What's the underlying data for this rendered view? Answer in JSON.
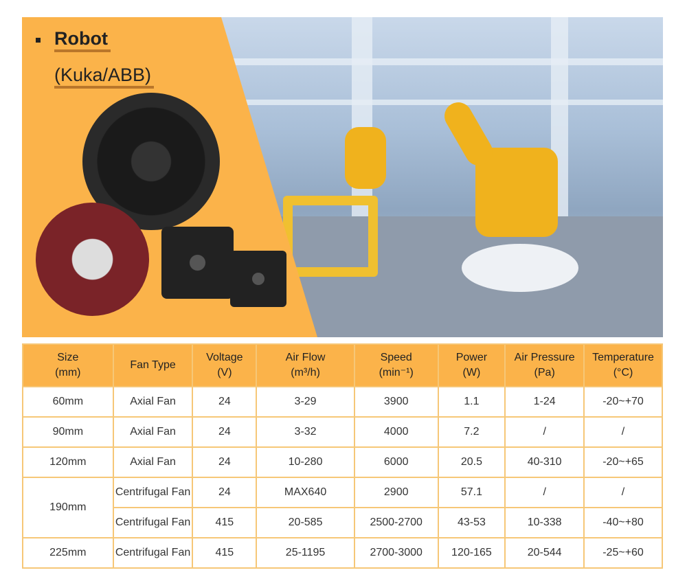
{
  "hero": {
    "title_line1": "Robot",
    "title_line2": "(Kuka/ABB)"
  },
  "table": {
    "headers": [
      [
        "Size",
        "(mm)"
      ],
      [
        "Fan Type",
        ""
      ],
      [
        "Voltage",
        "(V)"
      ],
      [
        "Air Flow",
        "(m³/h)"
      ],
      [
        "Speed",
        "(min⁻¹)"
      ],
      [
        "Power",
        "(W)"
      ],
      [
        "Air Pressure",
        "(Pa)"
      ],
      [
        "Temperature",
        "(°C)"
      ]
    ],
    "rows": [
      [
        "60mm",
        "Axial Fan",
        "24",
        "3-29",
        "3900",
        "1.1",
        "1-24",
        "-20~+70"
      ],
      [
        "90mm",
        "Axial Fan",
        "24",
        "3-32",
        "4000",
        "7.2",
        "/",
        "/"
      ],
      [
        "120mm",
        "Axial Fan",
        "24",
        "10-280",
        "6000",
        "20.5",
        "40-310",
        "-20~+65"
      ],
      [
        "190mm",
        "Centrifugal Fan",
        "24",
        "MAX640",
        "2900",
        "57.1",
        "/",
        "/"
      ],
      [
        "",
        "Centrifugal Fan",
        "415",
        "20-585",
        "2500-2700",
        "43-53",
        "10-338",
        "-40~+80"
      ],
      [
        "225mm",
        "Centrifugal Fan",
        "415",
        "25-1195",
        "2700-3000",
        "120-165",
        "20-544",
        "-25~+60"
      ]
    ]
  }
}
